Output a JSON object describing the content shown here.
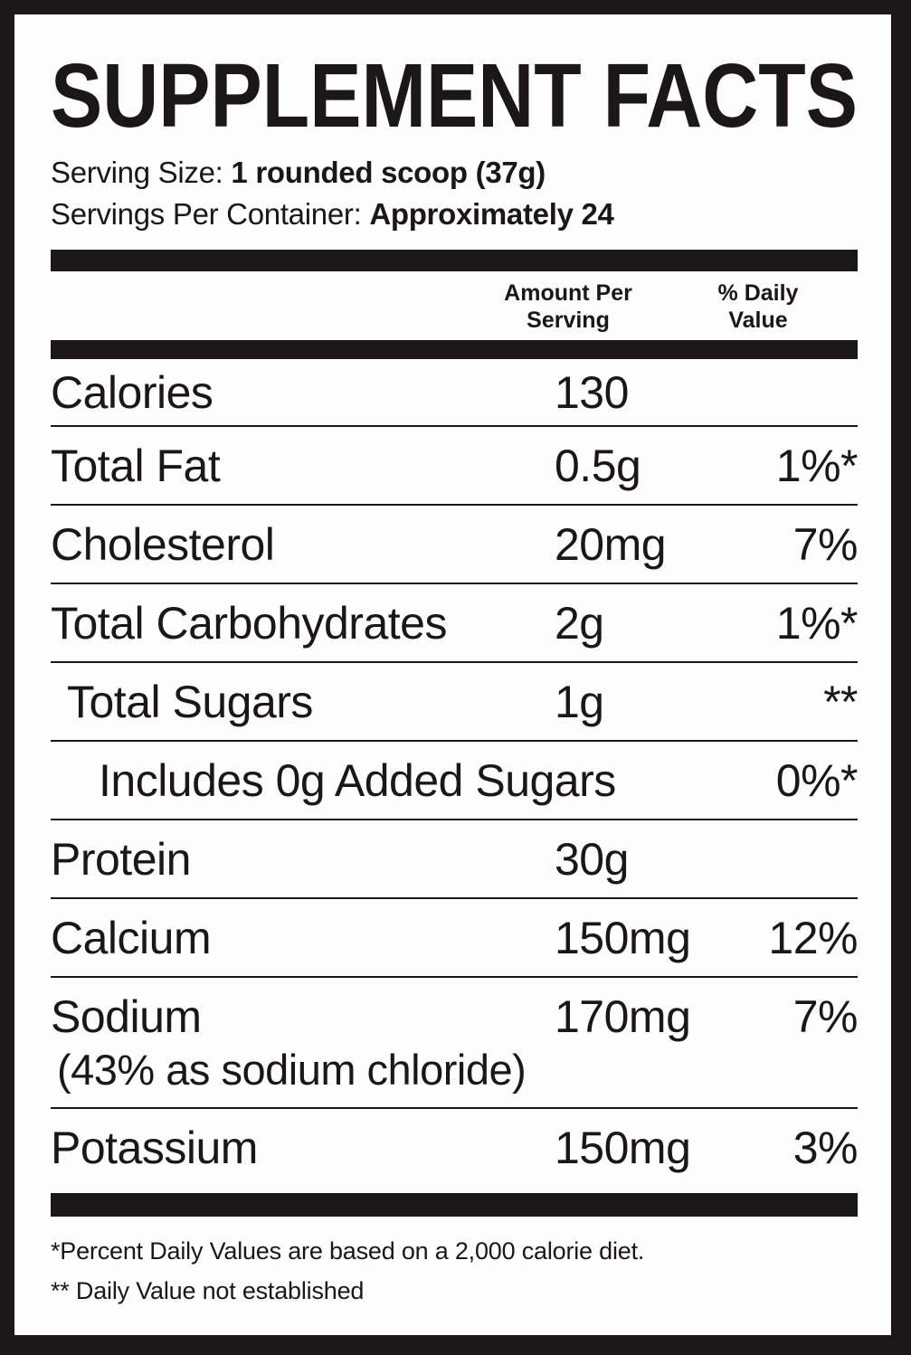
{
  "label": {
    "title": "SUPPLEMENT FACTS",
    "serving_size_label": "Serving Size:",
    "serving_size_value": "1 rounded scoop (37g)",
    "servings_per_container_label": "Servings Per Container:",
    "servings_per_container_value": "Approximately 24",
    "columns": {
      "amount_line1": "Amount Per",
      "amount_line2": "Serving",
      "daily_line1": "% Daily",
      "daily_line2": "Value"
    },
    "rows": [
      {
        "label": "Calories",
        "amount": "130",
        "daily": ""
      },
      {
        "label": "Total Fat",
        "amount": "0.5g",
        "daily": "1%*"
      },
      {
        "label": "Cholesterol",
        "amount": "20mg",
        "daily": "7%"
      },
      {
        "label": "Total Carbohydrates",
        "amount": "2g",
        "daily": "1%*"
      },
      {
        "label": "Total Sugars",
        "amount": "1g",
        "daily": "**"
      },
      {
        "label": "Includes 0g Added Sugars",
        "amount": "",
        "daily": "0%*"
      },
      {
        "label": "Protein",
        "amount": "30g",
        "daily": ""
      },
      {
        "label": "Calcium",
        "amount": "150mg",
        "daily": "12%"
      },
      {
        "label": "Sodium",
        "amount": "170mg",
        "daily": "7%",
        "note": "(43% as sodium chloride)"
      },
      {
        "label": "Potassium",
        "amount": "150mg",
        "daily": "3%"
      }
    ],
    "footnotes": [
      "*Percent Daily Values are based on a 2,000 calorie diet.",
      "** Daily Value not established"
    ],
    "colors": {
      "ink": "#1b1718",
      "background": "#fdfdfd"
    }
  }
}
